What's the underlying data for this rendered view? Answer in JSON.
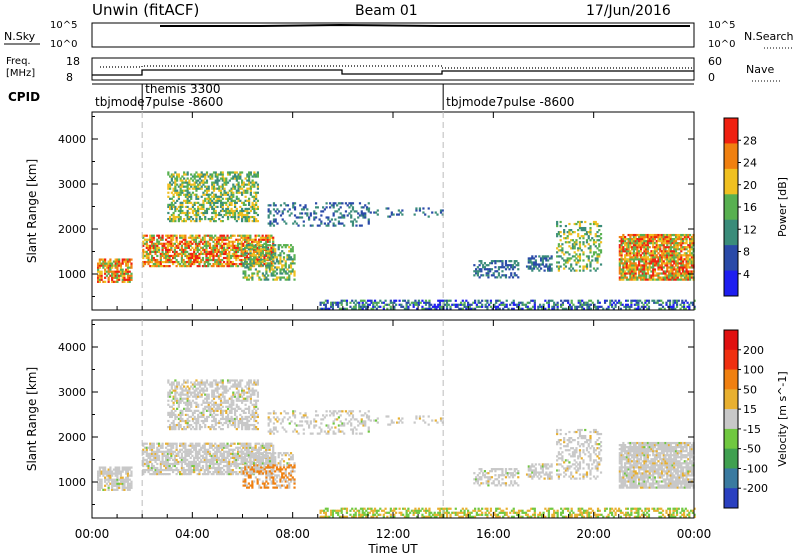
{
  "header": {
    "site": "Unwin (fitACF)",
    "beam": "Beam 01",
    "date": "17/Jun/2016"
  },
  "nsky_panel": {
    "left_label": "N.Sky",
    "right_label": "N.Search",
    "tick_top": "10^5",
    "tick_bottom": "10^0",
    "right_tick_top": "10^5",
    "right_tick_bottom": "10^0"
  },
  "freq_panel": {
    "left_label_line1": "Freq.",
    "left_label_line2": "[MHz]",
    "left_tick_top": "18",
    "left_tick_bottom": "8",
    "right_label": "Nave",
    "right_tick_top": "60",
    "right_tick_bottom": "0"
  },
  "cpid_panel": {
    "label": "CPID",
    "modes": [
      {
        "name": "tbjmode7pulse -8600",
        "start_h": 0.0
      },
      {
        "name": "themis 3300",
        "start_h": 2.0
      },
      {
        "name": "tbjmode7pulse -8600",
        "start_h": 14.0
      }
    ]
  },
  "chart_data": [
    {
      "type": "heatmap",
      "name": "power",
      "ylabel": "Slant Range [km]",
      "y_ticks": [
        "1000",
        "2000",
        "3000",
        "4000"
      ],
      "ylim": [
        200,
        4600
      ],
      "xlim": [
        0,
        24
      ],
      "x_ticks": [
        "00:00",
        "04:00",
        "08:00",
        "12:00",
        "16:00",
        "20:00",
        "00:00"
      ],
      "colorbar_label": "Power [dB]",
      "colorbar_ticks": [
        "4",
        "8",
        "12",
        "16",
        "20",
        "24",
        "28"
      ],
      "colorbar_range": [
        0,
        30
      ],
      "colors": [
        "#1e1ef0",
        "#2a4aa8",
        "#3a8c7a",
        "#58b050",
        "#f0c020",
        "#f08010",
        "#f02010"
      ]
    },
    {
      "type": "heatmap",
      "name": "velocity",
      "ylabel": "Slant Range [km]",
      "y_ticks": [
        "1000",
        "2000",
        "3000",
        "4000"
      ],
      "ylim": [
        200,
        4600
      ],
      "xlim": [
        0,
        24
      ],
      "x_ticks": [
        "00:00",
        "04:00",
        "08:00",
        "12:00",
        "16:00",
        "20:00",
        "00:00"
      ],
      "xlabel": "Time UT",
      "colorbar_label": "Velocity [m s^-1]",
      "colorbar_ticks": [
        "200",
        "100",
        "50",
        "15",
        "-15",
        "-50",
        "-100",
        "-200"
      ],
      "colors": [
        "#2a40c0",
        "#3a7aa0",
        "#40a050",
        "#70c840",
        "#c8c8c8",
        "#e8b030",
        "#f08010",
        "#f03010",
        "#e01010"
      ]
    }
  ]
}
